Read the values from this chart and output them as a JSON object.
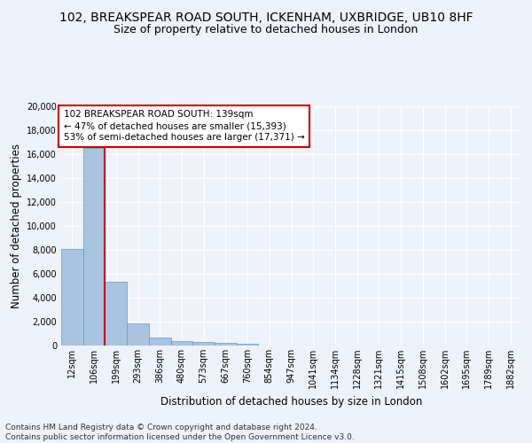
{
  "title_line1": "102, BREAKSPEAR ROAD SOUTH, ICKENHAM, UXBRIDGE, UB10 8HF",
  "title_line2": "Size of property relative to detached houses in London",
  "xlabel": "Distribution of detached houses by size in London",
  "ylabel": "Number of detached properties",
  "categories": [
    "12sqm",
    "106sqm",
    "199sqm",
    "293sqm",
    "386sqm",
    "480sqm",
    "573sqm",
    "667sqm",
    "760sqm",
    "854sqm",
    "947sqm",
    "1041sqm",
    "1134sqm",
    "1228sqm",
    "1321sqm",
    "1415sqm",
    "1508sqm",
    "1602sqm",
    "1695sqm",
    "1789sqm",
    "1882sqm"
  ],
  "values": [
    8100,
    16500,
    5300,
    1850,
    680,
    350,
    265,
    200,
    155,
    0,
    0,
    0,
    0,
    0,
    0,
    0,
    0,
    0,
    0,
    0,
    0
  ],
  "bar_color": "#a8c4e0",
  "bar_edge_color": "#5b9bd5",
  "vline_x": 1.5,
  "vline_color": "#cc0000",
  "annotation_text": "102 BREAKSPEAR ROAD SOUTH: 139sqm\n← 47% of detached houses are smaller (15,393)\n53% of semi-detached houses are larger (17,371) →",
  "annotation_box_color": "#ffffff",
  "annotation_box_edge": "#cc0000",
  "ylim": [
    0,
    20000
  ],
  "yticks": [
    0,
    2000,
    4000,
    6000,
    8000,
    10000,
    12000,
    14000,
    16000,
    18000,
    20000
  ],
  "footnote": "Contains HM Land Registry data © Crown copyright and database right 2024.\nContains public sector information licensed under the Open Government Licence v3.0.",
  "background_color": "#edf2fb",
  "plot_background": "#edf2fb",
  "grid_color": "#ffffff",
  "title_fontsize": 10,
  "subtitle_fontsize": 9,
  "axis_label_fontsize": 8.5,
  "tick_fontsize": 7,
  "annotation_fontsize": 7.5,
  "footnote_fontsize": 6.5
}
